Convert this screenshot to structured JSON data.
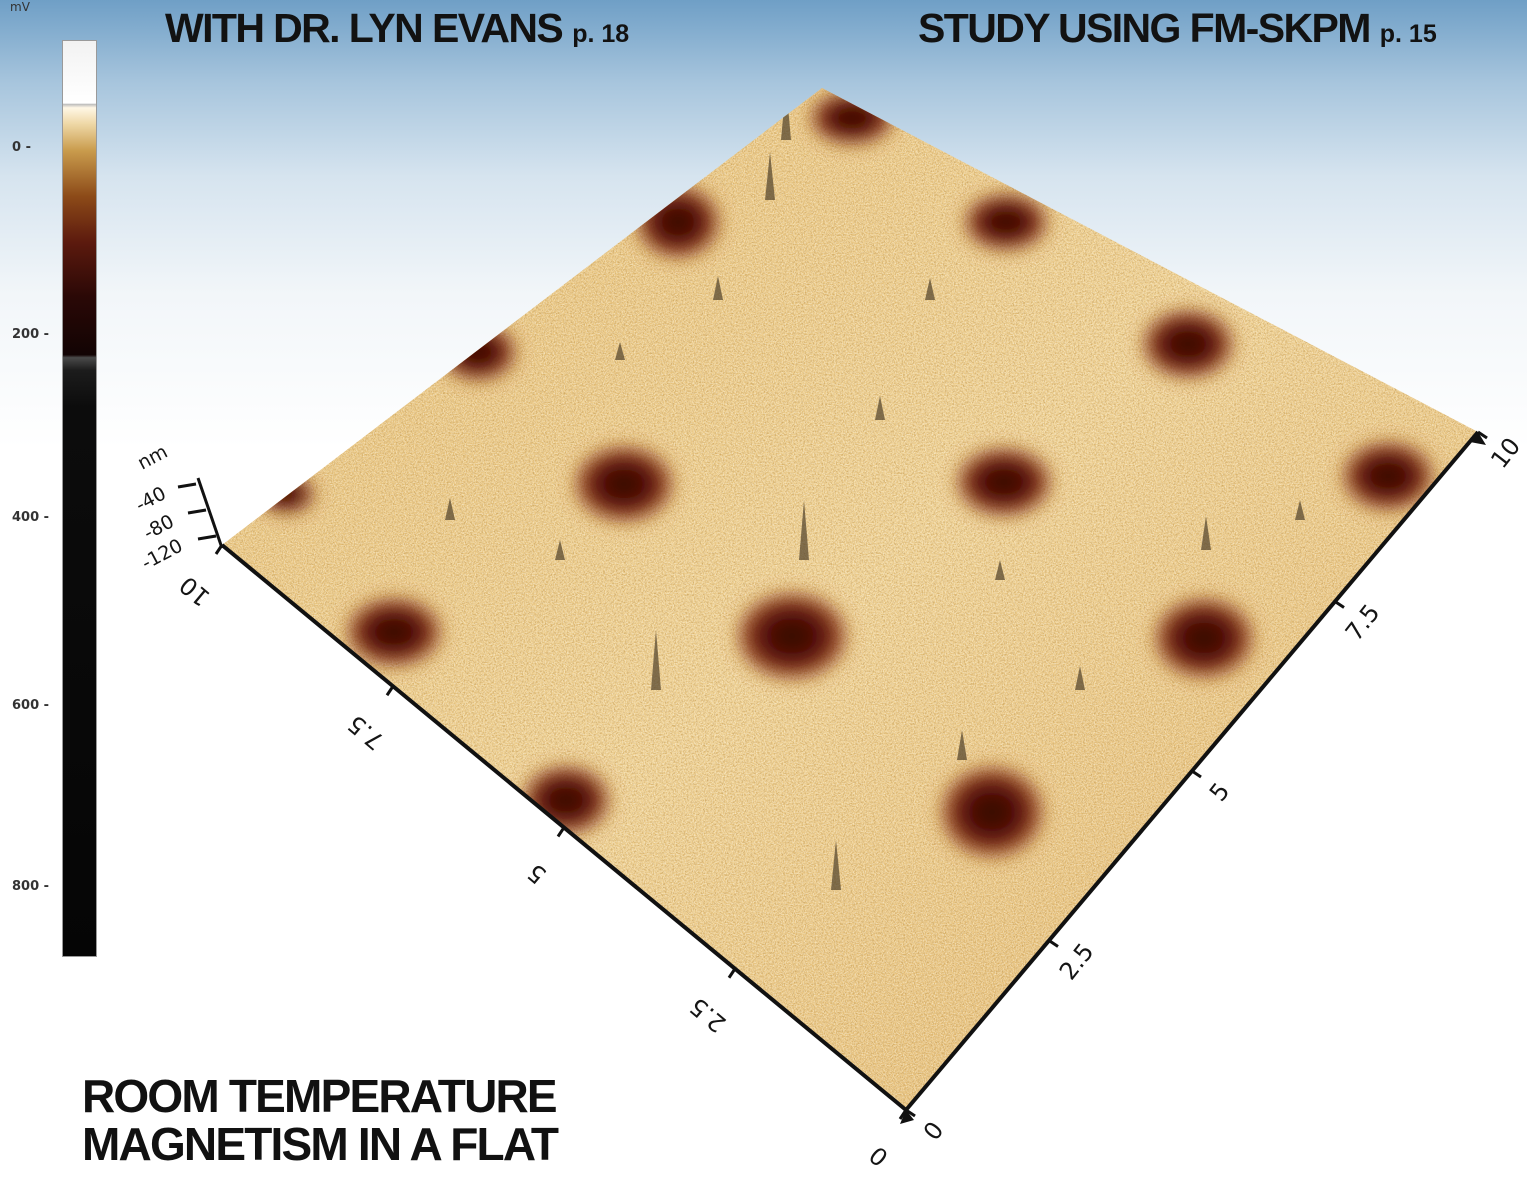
{
  "headlines": {
    "left": {
      "text": "WITH DR. LYN EVANS",
      "page": "p. 18"
    },
    "right": {
      "text": "STUDY USING FM-SKPM",
      "page": "p. 15"
    }
  },
  "colorbar": {
    "unit": "mV",
    "ticks": [
      "0",
      "200",
      "400",
      "600",
      "800"
    ]
  },
  "surface_plot": {
    "z_unit": "nm",
    "z_ticks": [
      "-40",
      "-80",
      "-120"
    ],
    "left_axis_ticks": [
      "0",
      "2.5",
      "5",
      "7.5",
      "10"
    ],
    "right_axis_ticks": [
      "0",
      "2.5",
      "5",
      "7.5",
      "10"
    ],
    "colors": {
      "surface_light": "#f3d9a0",
      "surface_mid": "#d9a95c",
      "dot_dark": "#5a1208",
      "dot_core": "#2b0603"
    }
  },
  "title": {
    "line1": "ROOM TEMPERATURE",
    "line2": "MAGNETISM IN A FLAT"
  }
}
